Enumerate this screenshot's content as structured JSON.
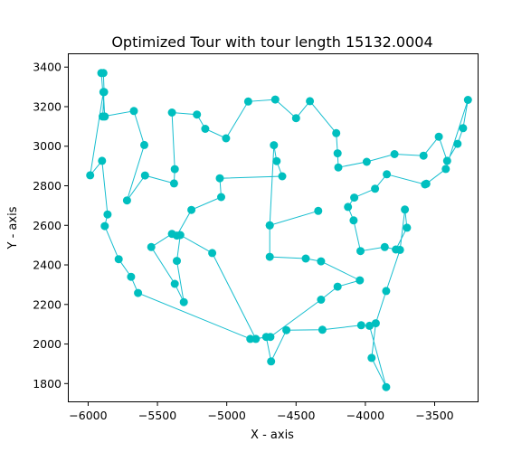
{
  "chart_data": {
    "type": "line",
    "title": "Optimized Tour with tour length 15132.0004",
    "xlabel": "X - axis",
    "ylabel": "Y - axis",
    "xlim": [
      -6140,
      -3190
    ],
    "ylim": [
      1710,
      3465
    ],
    "xticks": [
      -6000,
      -5500,
      -5000,
      -4500,
      -4000,
      -3500
    ],
    "xtick_labels": [
      "−6000",
      "−5500",
      "−5000",
      "−4500",
      "−4000",
      "−3500"
    ],
    "yticks": [
      1800,
      2000,
      2200,
      2400,
      2600,
      2800,
      3000,
      3200,
      3400
    ],
    "ytick_labels": [
      "1800",
      "2000",
      "2200",
      "2400",
      "2600",
      "2800",
      "3000",
      "3200",
      "3400"
    ],
    "grid": false,
    "color": "#17becf",
    "marker_color": "#00bfbf",
    "series": [
      {
        "x": [
          -5890,
          -5885,
          -5895,
          -5670,
          -5595,
          -5720,
          -5590,
          -5380,
          -5375,
          -5395,
          -5215,
          -5155,
          -5005,
          -4845,
          -4650,
          -4500,
          -4400,
          -4210,
          -4200,
          -4195,
          -3990,
          -3790,
          -3580,
          -3470,
          -3410,
          -3335,
          -3295,
          -3260,
          -3420,
          -3560,
          -3570,
          -3845,
          -3930,
          -4080,
          -4125,
          -4085,
          -4035,
          -3860,
          -3780,
          -3700,
          -3715,
          -3750,
          -3850,
          -3925,
          -3955,
          -3850,
          -3970,
          -4030,
          -4310,
          -4570,
          -4680,
          -4715,
          -4790,
          -5105,
          -5335,
          -5360,
          -5310,
          -5375,
          -5545,
          -5395,
          -5360,
          -5255,
          -5040,
          -5050,
          -4600,
          -4640,
          -4660,
          -4690,
          -4340,
          -4690,
          -4690,
          -4430,
          -4320,
          -4040,
          -4200,
          -4320,
          -4685,
          -4830,
          -5640,
          -5690,
          -5780,
          -5880,
          -5860,
          -5900,
          -5985,
          -5890,
          -5880,
          -5905
        ],
        "y": [
          3370,
          3274,
          3150,
          3178,
          3006,
          2726,
          2852,
          2812,
          2884,
          3170,
          3160,
          3088,
          3040,
          3226,
          3236,
          3142,
          3228,
          3066,
          2964,
          2893,
          2921,
          2960,
          2952,
          3048,
          2926,
          3012,
          3091,
          3234,
          2885,
          2810,
          2807,
          2858,
          2785,
          2740,
          2693,
          2625,
          2470,
          2490,
          2478,
          2588,
          2680,
          2476,
          2268,
          2105,
          1930,
          1782,
          2092,
          2095,
          2072,
          2070,
          1912,
          2036,
          2026,
          2460,
          2551,
          2420,
          2212,
          2304,
          2490,
          2557,
          2548,
          2678,
          2743,
          2838,
          2848,
          2925,
          3005,
          2600,
          2673,
          2600,
          2441,
          2432,
          2418,
          2322,
          2290,
          2224,
          2036,
          2026,
          2258,
          2340,
          2429,
          2596,
          2655,
          2926,
          2853,
          3274,
          3150,
          3370
        ]
      }
    ]
  }
}
